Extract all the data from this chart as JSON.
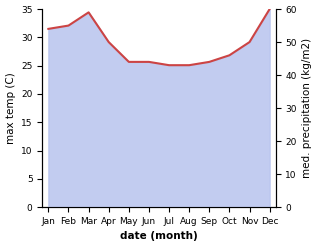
{
  "months": [
    "Jan",
    "Feb",
    "Mar",
    "Apr",
    "May",
    "Jun",
    "Jul",
    "Aug",
    "Sep",
    "Oct",
    "Nov",
    "Dec"
  ],
  "precipitation": [
    54,
    55,
    59,
    50,
    44,
    44,
    43,
    43,
    44,
    46,
    50,
    60
  ],
  "temp_color": "#cc4444",
  "precip_fill_color": "#b8c4ee",
  "temp_ylim": [
    0,
    35
  ],
  "precip_ylim": [
    0,
    60
  ],
  "temp_yticks": [
    0,
    5,
    10,
    15,
    20,
    25,
    30,
    35
  ],
  "precip_yticks": [
    0,
    10,
    20,
    30,
    40,
    50,
    60
  ],
  "xlabel": "date (month)",
  "ylabel_left": "max temp (C)",
  "ylabel_right": "med. precipitation (kg/m2)",
  "label_fontsize": 7.5,
  "tick_fontsize": 6.5
}
